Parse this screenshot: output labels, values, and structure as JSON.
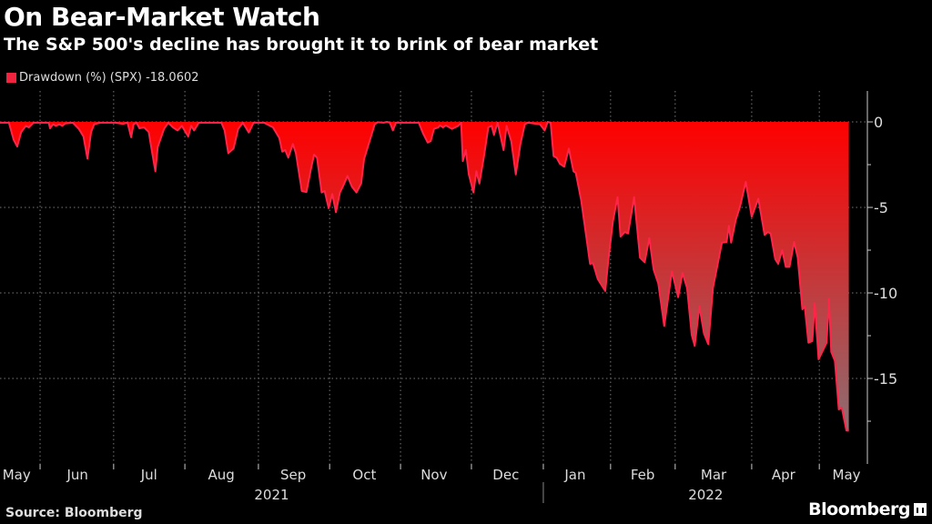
{
  "chart_data": {
    "type": "area",
    "title": "On Bear-Market Watch",
    "subtitle": "The S&P 500's decline has brought it to brink of bear market",
    "legend": {
      "label": "Drawdown (%) (SPX) -18.0602",
      "placement": "top-left"
    },
    "xlabel": "",
    "ylabel": "",
    "x_unit": "trading-day index from mid-May 2021",
    "xlim": [
      0,
      257
    ],
    "ylim": [
      -19.5,
      1.8
    ],
    "yticks": [
      0,
      -5,
      -10,
      -15
    ],
    "ytick_labels": [
      "0",
      "-5",
      "-10",
      "-15"
    ],
    "y_minor_ticks": [
      -2.5,
      -7.5,
      -12.5,
      -17.5
    ],
    "month_boundaries": [
      12.1,
      34.3,
      55.8,
      78,
      99.5,
      120.9,
      142.3,
      164,
      184.3,
      203.8,
      226.9,
      247.3
    ],
    "month_labels": [
      {
        "label": "May",
        "x": 5
      },
      {
        "label": "Jun",
        "x": 23.4
      },
      {
        "label": "Jul",
        "x": 45
      },
      {
        "label": "Aug",
        "x": 66.8
      },
      {
        "label": "Sep",
        "x": 88.5
      },
      {
        "label": "Oct",
        "x": 110
      },
      {
        "label": "Nov",
        "x": 131
      },
      {
        "label": "Dec",
        "x": 152.7
      },
      {
        "label": "Jan",
        "x": 173.6
      },
      {
        "label": "Feb",
        "x": 194
      },
      {
        "label": "Mar",
        "x": 215.4
      },
      {
        "label": "Apr",
        "x": 236.5
      },
      {
        "label": "May",
        "x": 255.5
      }
    ],
    "year_labels": [
      {
        "label": "2021",
        "x": 82
      },
      {
        "label": "2022",
        "x": 213
      }
    ],
    "year_separator_x": 164,
    "grid": true,
    "series": [
      {
        "name": "Drawdown (%) (SPX)",
        "last_value": -18.0602,
        "x": [
          0,
          2.7,
          4.1,
          5.2,
          6.4,
          7.8,
          8.7,
          10.1,
          14.7,
          15.1,
          16.0,
          16.9,
          17.9,
          18.8,
          19.7,
          22.0,
          23.8,
          25.2,
          26.4,
          27.5,
          28.4,
          30.2,
          34.8,
          37.1,
          38.5,
          39.6,
          40.3,
          41.2,
          42.1,
          43.5,
          44.9,
          45.8,
          46.9,
          47.6,
          49.5,
          50.8,
          52.2,
          53.6,
          54.9,
          56.8,
          57.7,
          58.6,
          60.0,
          66.8,
          67.8,
          68.9,
          70.5,
          71.9,
          73.3,
          75.1,
          76.5,
          79.7,
          82.4,
          84.3,
          85.2,
          86.1,
          87.0,
          88.4,
          89.3,
          91.1,
          92.5,
          93.9,
          94.8,
          95.7,
          97.1,
          98.0,
          99.2,
          100.3,
          101.4,
          102.6,
          103.5,
          104.9,
          106.2,
          107.6,
          109.0,
          109.9,
          111.3,
          113.1,
          114.0,
          115.8,
          116.8,
          117.7,
          118.6,
          119.5,
          126.4,
          127.7,
          129.1,
          130.0,
          131.0,
          132.3,
          132.8,
          133.7,
          134.6,
          136.4,
          138.3,
          139.2,
          139.7,
          140.6,
          141.5,
          142.9,
          143.8,
          144.7,
          146.1,
          147.4,
          148.4,
          149.1,
          150.2,
          152.0,
          152.9,
          154.3,
          155.7,
          157.1,
          158.4,
          159.3,
          163.0,
          164.4,
          165.3,
          166.2,
          167.1,
          168.0,
          169.0,
          170.3,
          171.7,
          173.1,
          173.8,
          175.4,
          176.7,
          178.1,
          179.0,
          180.4,
          182.7,
          183.6,
          185.0,
          186.4,
          187.3,
          188.6,
          189.6,
          191.4,
          193.2,
          194.6,
          196.0,
          197.3,
          198.7,
          200.5,
          202.8,
          204.7,
          206.0,
          207.4,
          208.8,
          209.7,
          211.1,
          212.5,
          213.8,
          215.2,
          217.9,
          219.3,
          220.0,
          220.7,
          222.1,
          223.4,
          225.1,
          226.9,
          228.9,
          230.8,
          231.7,
          232.6,
          234.0,
          234.9,
          236.1,
          237.2,
          238.3,
          239.7,
          240.8,
          242.2,
          242.9,
          244.0,
          245.2,
          245.9,
          247.1,
          248.2,
          249.5,
          250.2,
          250.9,
          252.0,
          253.2,
          254.1,
          255.5,
          256.2
        ],
        "values": [
          -0.05,
          -0.05,
          -1.03,
          -1.44,
          -0.59,
          -0.23,
          -0.32,
          -0.05,
          -0.05,
          -0.37,
          -0.14,
          -0.23,
          -0.14,
          -0.23,
          -0.09,
          -0.05,
          -0.41,
          -0.85,
          -2.15,
          -0.59,
          -0.14,
          -0.05,
          -0.05,
          -0.11,
          -0.05,
          -0.9,
          -0.14,
          -0.05,
          -0.37,
          -0.32,
          -0.59,
          -1.65,
          -2.89,
          -1.47,
          -0.41,
          -0.05,
          -0.32,
          -0.5,
          -0.23,
          -0.85,
          -0.23,
          -0.5,
          -0.05,
          -0.05,
          -0.5,
          -1.83,
          -1.56,
          -0.41,
          -0.05,
          -0.62,
          -0.05,
          -0.05,
          -0.32,
          -0.94,
          -1.74,
          -1.65,
          -2.09,
          -1.29,
          -1.83,
          -4.04,
          -4.1,
          -2.71,
          -1.91,
          -2.09,
          -4.13,
          -4.04,
          -5.05,
          -4.22,
          -5.28,
          -4.13,
          -3.78,
          -3.16,
          -3.78,
          -4.13,
          -3.6,
          -2.18,
          -1.29,
          -0.14,
          -0.02,
          -0.05,
          0,
          -0.05,
          -0.5,
          -0.05,
          -0.05,
          -0.67,
          -1.21,
          -1.12,
          -0.41,
          -0.32,
          -0.2,
          -0.32,
          -0.2,
          -0.41,
          -0.23,
          -0.05,
          -2.29,
          -1.65,
          -3.07,
          -4.13,
          -2.89,
          -3.6,
          -2.0,
          -0.32,
          -0.23,
          -0.76,
          -0.05,
          -1.65,
          -0.23,
          -1.12,
          -3.07,
          -1.29,
          -0.14,
          -0.05,
          -0.14,
          -0.5,
          0,
          -0.05,
          -2.0,
          -2.09,
          -2.45,
          -2.62,
          -1.56,
          -2.89,
          -2.98,
          -4.57,
          -6.35,
          -8.3,
          -8.26,
          -9.18,
          -9.89,
          -8.12,
          -5.82,
          -4.4,
          -6.7,
          -6.44,
          -6.52,
          -4.4,
          -7.94,
          -8.21,
          -6.79,
          -8.65,
          -9.45,
          -11.93,
          -8.74,
          -10.25,
          -8.83,
          -9.72,
          -12.46,
          -13.09,
          -10.78,
          -12.38,
          -13.0,
          -9.72,
          -7.06,
          -7.02,
          -6.08,
          -7.06,
          -5.73,
          -4.93,
          -3.51,
          -5.55,
          -4.49,
          -6.61,
          -6.44,
          -6.52,
          -8.03,
          -8.3,
          -7.5,
          -8.48,
          -8.48,
          -7.02,
          -7.94,
          -10.96,
          -10.78,
          -12.91,
          -12.82,
          -10.6,
          -13.88,
          -13.44,
          -12.91,
          -10.34,
          -13.44,
          -13.97,
          -16.81,
          -16.72,
          -18.05,
          -18.06
        ]
      }
    ],
    "colors": {
      "line": "#ff2448",
      "fill_top": "#ff0000",
      "fill_bottom": "#8c6e72",
      "legend_swatch": "#f0243f",
      "grid": "#777777"
    }
  },
  "footer": {
    "source": "Source: Bloomberg",
    "brand": "Bloomberg"
  }
}
